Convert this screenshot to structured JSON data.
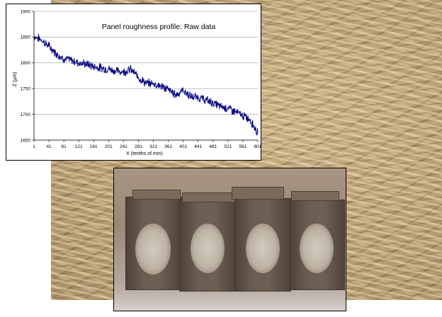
{
  "chart_data": {
    "type": "line",
    "title": "Panel roughness profile: Raw data",
    "xlabel": "X (tenths of mm)",
    "ylabel": "Z (µm)",
    "xlim": [
      1,
      601
    ],
    "ylim": [
      1650,
      1900
    ],
    "x_ticks": [
      "1",
      "41",
      "81",
      "121",
      "161",
      "201",
      "241",
      "281",
      "321",
      "361",
      "401",
      "441",
      "481",
      "521",
      "561",
      "601"
    ],
    "y_ticks": [
      "1650",
      "1700",
      "1750",
      "1800",
      "1850",
      "1900"
    ],
    "grid": "horizontal",
    "legend": "none",
    "line_color": "#00007f",
    "series": [
      {
        "x": [
          1,
          21,
          41,
          61,
          81,
          101,
          121,
          141,
          161,
          181,
          201,
          221,
          241,
          261,
          281,
          301,
          321,
          341,
          361,
          381,
          401,
          421,
          441,
          461,
          481,
          501,
          521,
          541,
          561,
          581,
          601
        ],
        "values": [
          1852,
          1845,
          1832,
          1818,
          1808,
          1805,
          1800,
          1798,
          1793,
          1790,
          1788,
          1784,
          1783,
          1787,
          1772,
          1760,
          1760,
          1755,
          1748,
          1738,
          1747,
          1734,
          1733,
          1728,
          1722,
          1715,
          1712,
          1705,
          1697,
          1690,
          1663
        ]
      }
    ]
  },
  "figures": {
    "background_photo": "osb-panel-surface",
    "sample_photo": "four-board-specimens-with-oval-marks"
  }
}
